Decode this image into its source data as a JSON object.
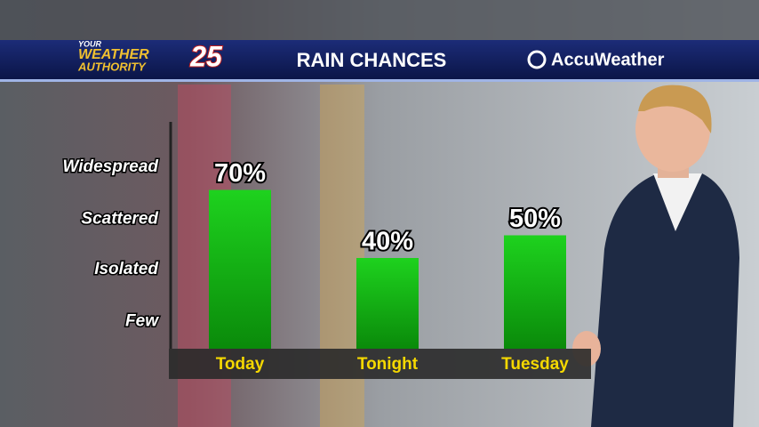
{
  "branding": {
    "line1": "YOUR",
    "line2": "WEATHER",
    "line3": "AUTHORITY",
    "channel": "25"
  },
  "sponsor": "AccuWeather",
  "chart_data": {
    "type": "bar",
    "title": "RAIN CHANCES",
    "categories": [
      "Today",
      "Tonight",
      "Tuesday"
    ],
    "values": [
      70,
      40,
      50
    ],
    "value_labels": [
      "70%",
      "40%",
      "50%"
    ],
    "color": "#12b812",
    "ylim": [
      0,
      100
    ],
    "yticks": [
      {
        "value": 12,
        "label": "Few"
      },
      {
        "value": 35,
        "label": "Isolated"
      },
      {
        "value": 57,
        "label": "Scattered"
      },
      {
        "value": 80,
        "label": "Widespread"
      }
    ]
  }
}
